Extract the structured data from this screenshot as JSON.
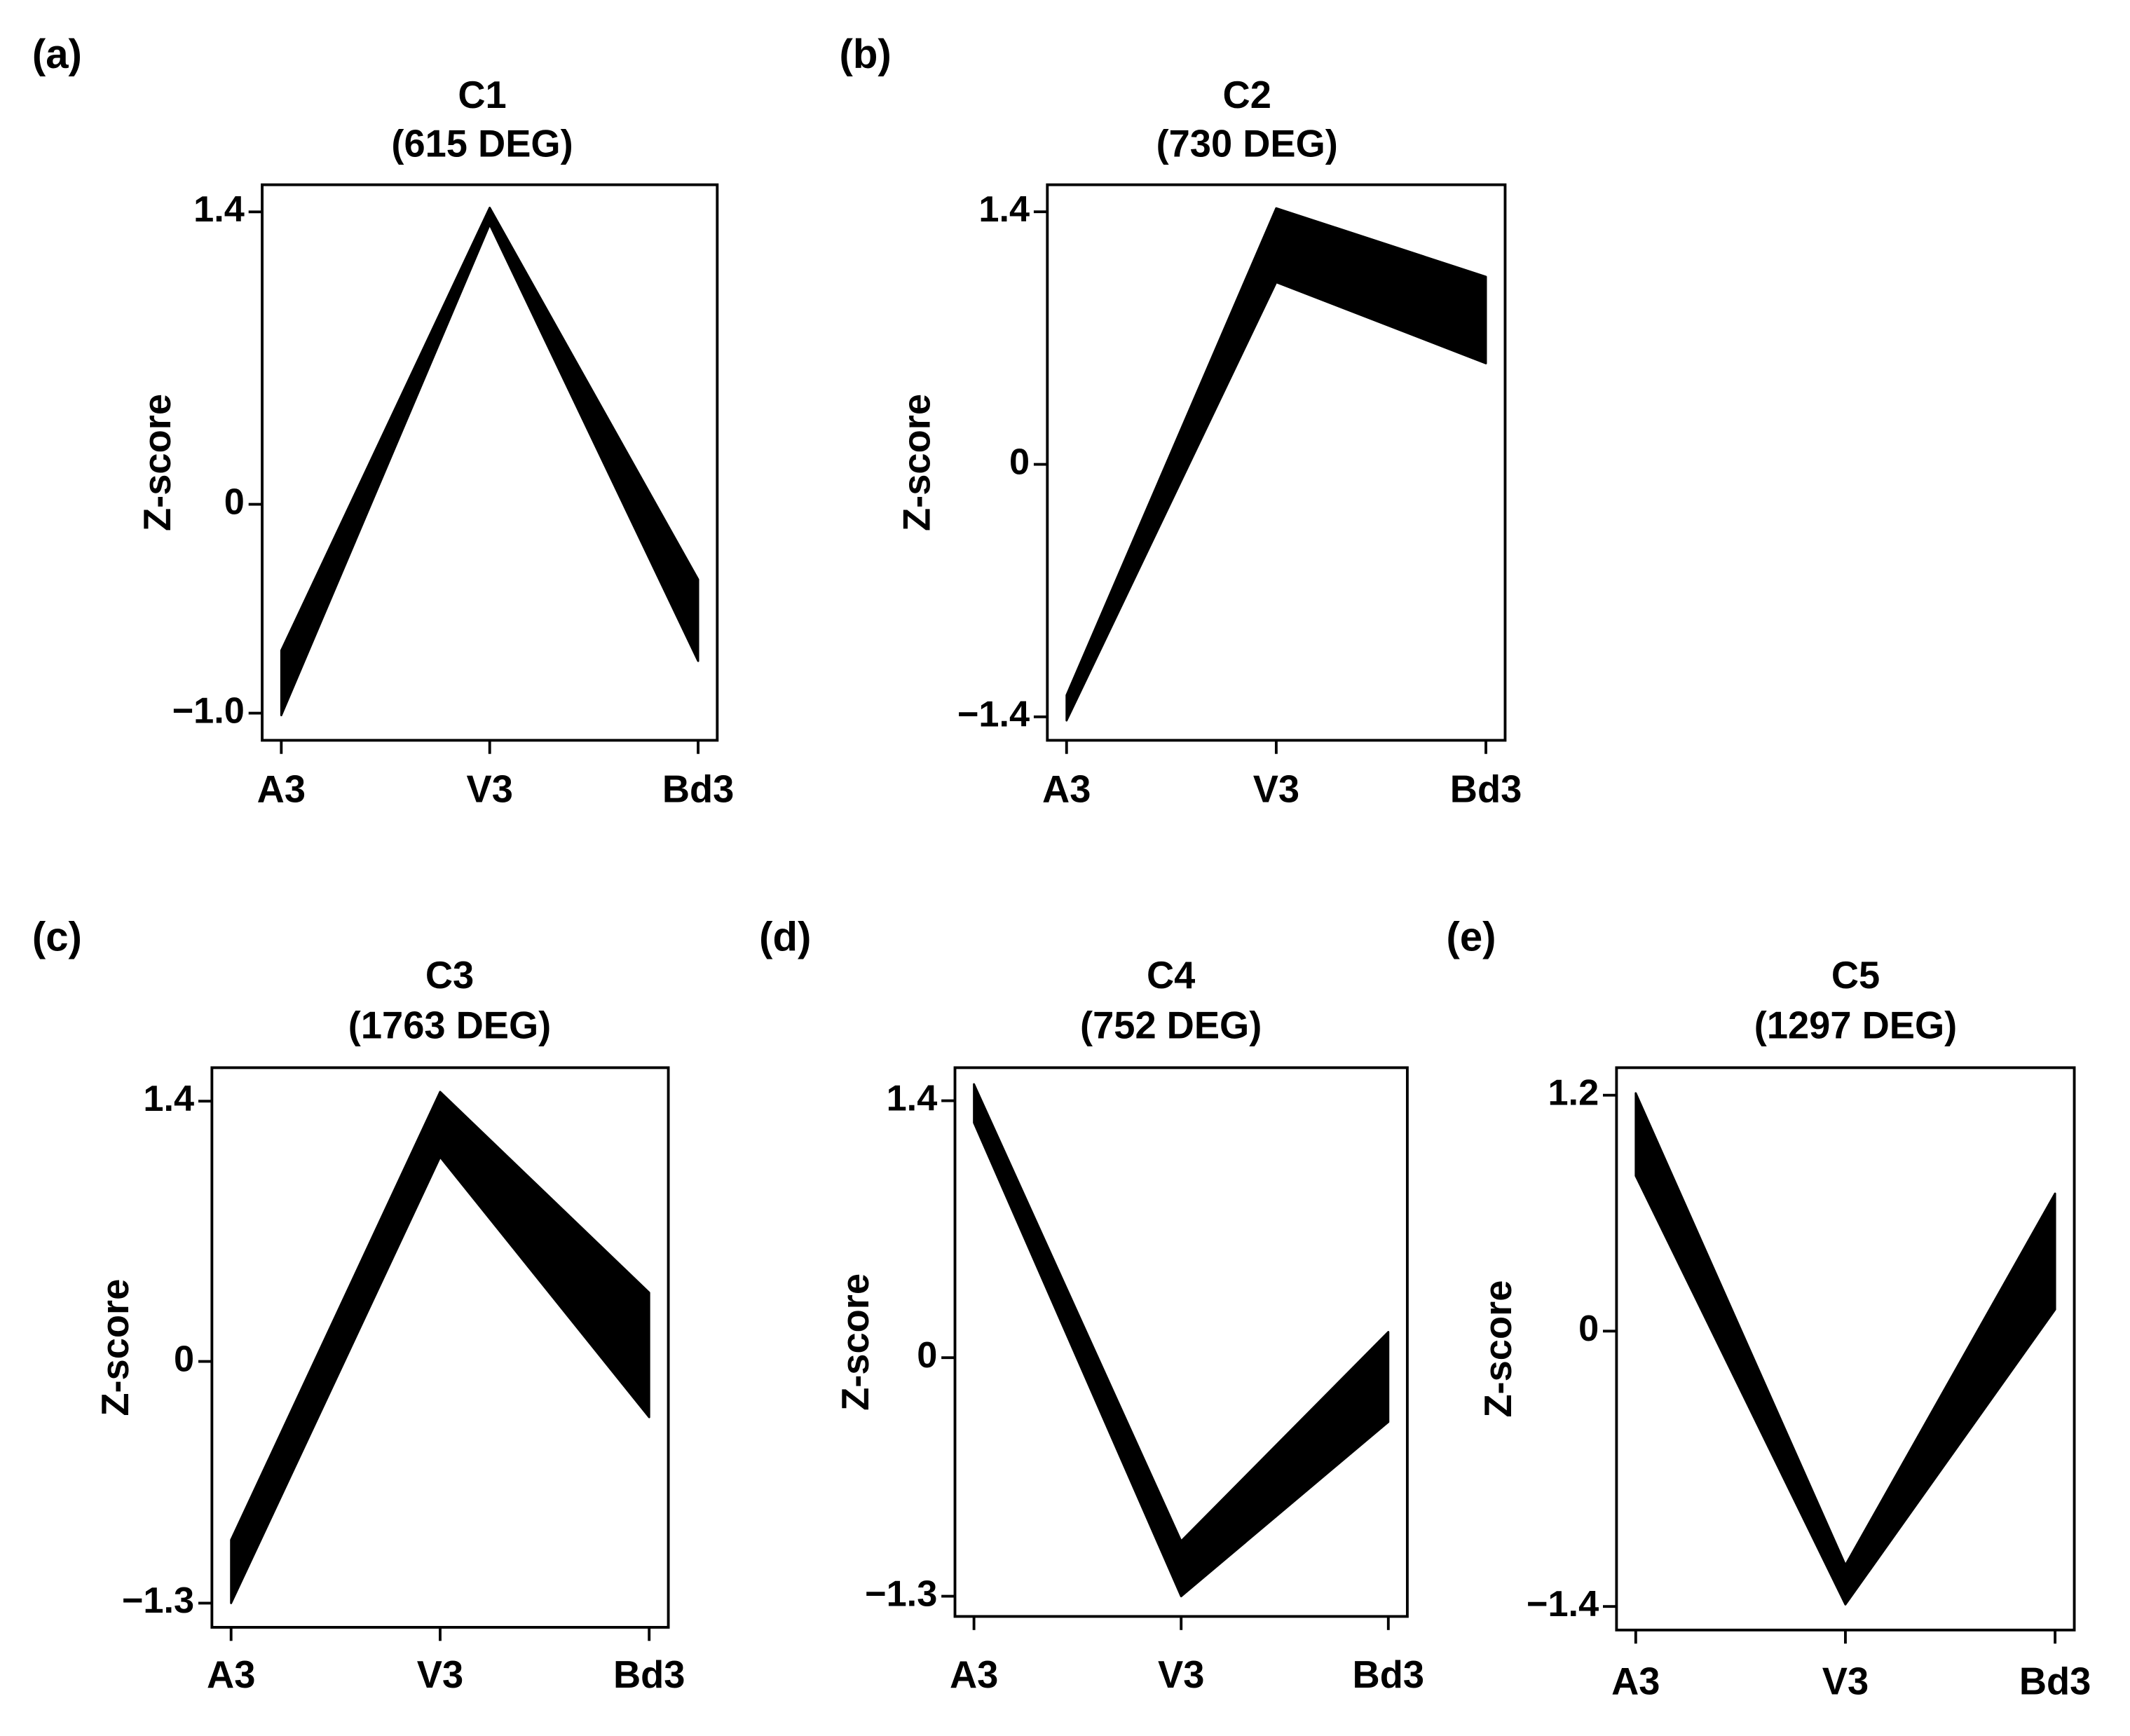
{
  "chart_data": [
    {
      "type": "band",
      "panel_label": "(a)",
      "title": "C1",
      "subtitle": "(615 DEG)",
      "ylabel": "Z-score",
      "categories": [
        "A3",
        "V3",
        "Bd3"
      ],
      "upper": [
        -0.7,
        1.42,
        -0.36
      ],
      "lower": [
        -1.01,
        1.34,
        -0.75
      ],
      "color": "#000000",
      "ylim": [
        -1.13,
        1.53
      ],
      "yticks": [
        {
          "value": -1.0,
          "label": "−1.0"
        },
        0,
        1.4
      ]
    },
    {
      "type": "band",
      "panel_label": "(b)",
      "title": "C2",
      "subtitle": "(730 DEG)",
      "ylabel": "Z-score",
      "categories": [
        "A3",
        "V3",
        "Bd3"
      ],
      "upper": [
        -1.28,
        1.42,
        1.04
      ],
      "lower": [
        -1.42,
        1.01,
        0.56
      ],
      "color": "#000000",
      "ylim": [
        -1.53,
        1.55
      ],
      "yticks": [
        {
          "value": -1.4,
          "label": "−1.4"
        },
        0,
        1.4
      ]
    },
    {
      "type": "band",
      "panel_label": "(c)",
      "title": "C3",
      "subtitle": "(1763 DEG)",
      "ylabel": "Z-score",
      "categories": [
        "A3",
        "V3",
        "Bd3"
      ],
      "upper": [
        -0.96,
        1.45,
        0.37
      ],
      "lower": [
        -1.3,
        1.1,
        -0.3
      ],
      "color": "#000000",
      "ylim": [
        -1.43,
        1.58
      ],
      "yticks": [
        {
          "value": -1.3,
          "label": "−1.3"
        },
        0,
        1.4
      ]
    },
    {
      "type": "band",
      "panel_label": "(d)",
      "title": "C4",
      "subtitle": "(752 DEG)",
      "ylabel": "Z-score",
      "categories": [
        "A3",
        "V3",
        "Bd3"
      ],
      "upper": [
        1.49,
        -1.0,
        0.14
      ],
      "lower": [
        1.28,
        -1.3,
        -0.35
      ],
      "color": "#000000",
      "ylim": [
        -1.41,
        1.58
      ],
      "yticks": [
        {
          "value": -1.3,
          "label": "−1.3"
        },
        0,
        1.4
      ]
    },
    {
      "type": "band",
      "panel_label": "(e)",
      "title": "C5",
      "subtitle": "(1297 DEG)",
      "ylabel": "Z-score",
      "categories": [
        "A3",
        "V3",
        "Bd3"
      ],
      "upper": [
        1.21,
        -1.19,
        0.7
      ],
      "lower": [
        0.79,
        -1.39,
        0.11
      ],
      "color": "#000000",
      "ylim": [
        -1.52,
        1.34
      ],
      "yticks": [
        {
          "value": -1.4,
          "label": "−1.4"
        },
        0,
        1.2
      ]
    }
  ]
}
